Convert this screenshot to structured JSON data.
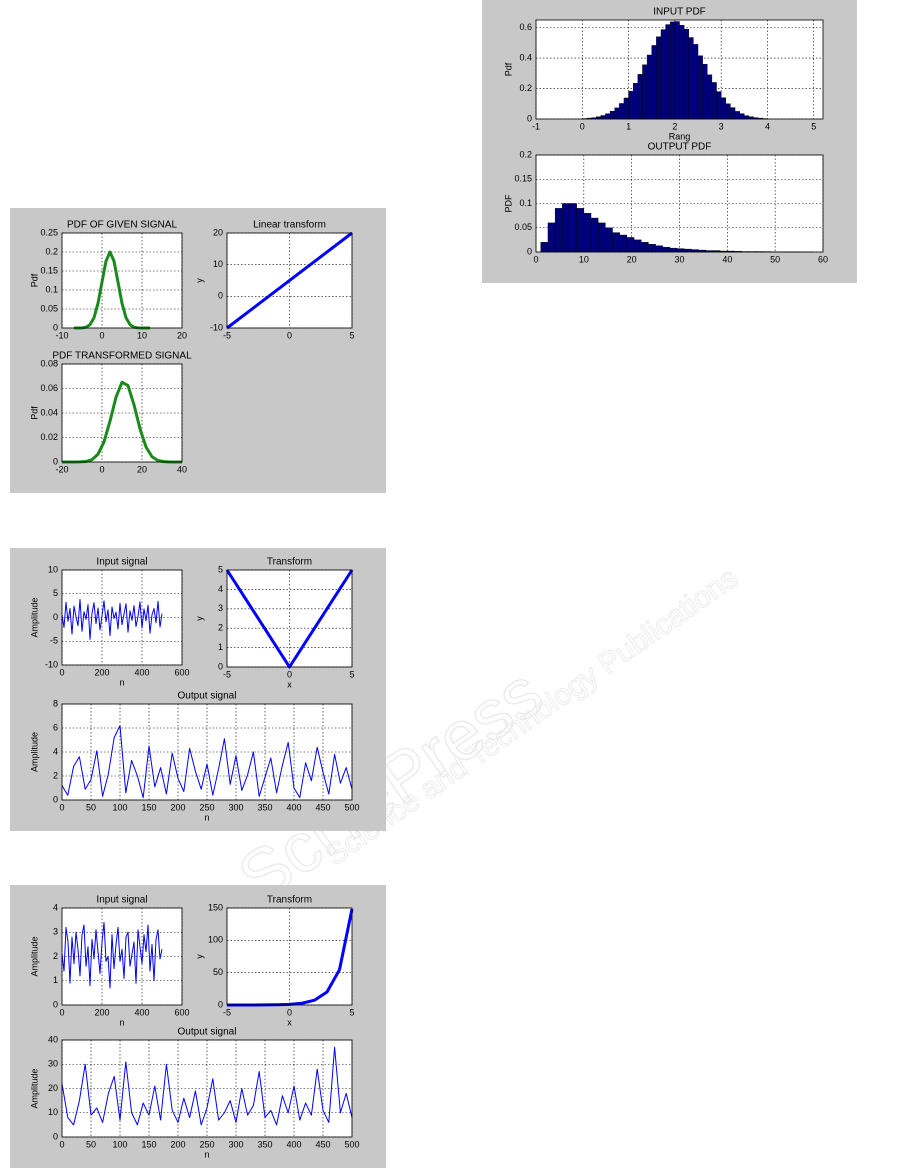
{
  "watermark": [
    "SciTePress",
    "Science and Technology Publications"
  ],
  "chart_data": [
    {
      "type": "line",
      "title": "PDF OF GIVEN SIGNAL",
      "ylabel": "Pdf",
      "xlim": [
        -10,
        20
      ],
      "xticks": [
        -10,
        0,
        10,
        20
      ],
      "ylim": [
        0,
        0.25
      ],
      "yticks": [
        0,
        0.05,
        0.1,
        0.15,
        0.2,
        0.25
      ],
      "grid": true,
      "x": [
        -7,
        -6,
        -5,
        -4,
        -3,
        -2,
        -1,
        0,
        1,
        2,
        3,
        4,
        5,
        6,
        7,
        8,
        9,
        10,
        11,
        12
      ],
      "series": [
        {
          "color": "#1b8a1b",
          "line_width": 3,
          "values": [
            0,
            0,
            0.0004,
            0.002,
            0.009,
            0.027,
            0.065,
            0.121,
            0.176,
            0.2,
            0.176,
            0.121,
            0.065,
            0.027,
            0.009,
            0.002,
            0.0004,
            0,
            0,
            0
          ]
        }
      ]
    },
    {
      "type": "line",
      "title": "Linear transform",
      "ylabel": "y",
      "xlim": [
        -5,
        5
      ],
      "xticks": [
        -5,
        0,
        5
      ],
      "ylim": [
        -10,
        20
      ],
      "yticks": [
        -10,
        0,
        10,
        20
      ],
      "grid": true,
      "x": [
        -5,
        5
      ],
      "series": [
        {
          "color": "#0000ff",
          "line_width": 3,
          "values": [
            -10,
            20
          ]
        }
      ]
    },
    {
      "type": "line",
      "title": "PDF TRANSFORMED SIGNAL",
      "ylabel": "Pdf",
      "xlim": [
        -20,
        40
      ],
      "xticks": [
        -20,
        0,
        20,
        40
      ],
      "ylim": [
        0,
        0.08
      ],
      "yticks": [
        0,
        0.02,
        0.04,
        0.06,
        0.08
      ],
      "grid": true,
      "x": [
        -20,
        -17,
        -14,
        -11,
        -8,
        -5,
        -2,
        1,
        4,
        7,
        10,
        13,
        16,
        19,
        22,
        25,
        28,
        31,
        34,
        37,
        40
      ],
      "series": [
        {
          "color": "#1b8a1b",
          "line_width": 3,
          "values": [
            0,
            0,
            0,
            0.0001,
            0.0004,
            0.0019,
            0.0063,
            0.0164,
            0.0334,
            0.0529,
            0.0651,
            0.0624,
            0.0467,
            0.0271,
            0.0123,
            0.0043,
            0.0012,
            0.0003,
            0,
            0,
            0
          ]
        }
      ]
    },
    {
      "type": "line",
      "title": "Input signal",
      "xlabel": "n",
      "ylabel": "Amplitude",
      "xlim": [
        0,
        600
      ],
      "xticks": [
        0,
        200,
        400,
        600
      ],
      "ylim": [
        -10,
        10
      ],
      "yticks": [
        -10,
        -5,
        0,
        5,
        10
      ],
      "grid": true,
      "x": [
        0,
        10,
        20,
        30,
        40,
        50,
        60,
        70,
        80,
        90,
        100,
        110,
        120,
        130,
        140,
        150,
        160,
        170,
        180,
        190,
        200,
        210,
        220,
        230,
        240,
        250,
        260,
        270,
        280,
        290,
        300,
        310,
        320,
        330,
        340,
        350,
        360,
        370,
        380,
        390,
        400,
        410,
        420,
        430,
        440,
        450,
        460,
        470,
        480,
        490,
        500
      ],
      "series": [
        {
          "color": "#0000ff",
          "line_width": 1,
          "values": [
            0.5,
            -2.1,
            3.2,
            -0.8,
            1.9,
            -3.5,
            2.4,
            0.1,
            -1.7,
            3.8,
            -2.9,
            1.2,
            -0.4,
            2.7,
            -4.6,
            0.9,
            3.1,
            -1.3,
            2.0,
            -2.6,
            0.3,
            3.5,
            -0.9,
            1.6,
            -3.8,
            2.2,
            -0.2,
            1.1,
            -2.4,
            3.0,
            -1.5,
            0.7,
            2.9,
            -3.1,
            1.4,
            -0.6,
            2.5,
            -1.9,
            0.2,
            3.3,
            -2.2,
            1.8,
            -0.7,
            2.6,
            -3.3,
            0.6,
            1.9,
            -1.1,
            3.4,
            -2.0,
            0.8
          ]
        }
      ]
    },
    {
      "type": "line",
      "title": "Transform",
      "xlabel": "x",
      "ylabel": "y",
      "xlim": [
        -5,
        5
      ],
      "xticks": [
        -5,
        0,
        5
      ],
      "ylim": [
        0,
        5
      ],
      "yticks": [
        0,
        1,
        2,
        3,
        4,
        5
      ],
      "grid": true,
      "x": [
        -5,
        0,
        5
      ],
      "series": [
        {
          "color": "#0000ff",
          "line_width": 3,
          "values": [
            5,
            0,
            5
          ]
        }
      ]
    },
    {
      "type": "line",
      "title": "Output  signal",
      "xlabel": "n",
      "ylabel": "Amplitude",
      "xlim": [
        0,
        500
      ],
      "xticks": [
        0,
        50,
        100,
        150,
        200,
        250,
        300,
        350,
        400,
        450,
        500
      ],
      "ylim": [
        0,
        8
      ],
      "yticks": [
        0,
        2,
        4,
        6,
        8
      ],
      "grid": true,
      "x": [
        0,
        10,
        20,
        30,
        40,
        50,
        60,
        70,
        80,
        90,
        100,
        110,
        120,
        130,
        140,
        150,
        160,
        170,
        180,
        190,
        200,
        210,
        220,
        230,
        240,
        250,
        260,
        270,
        280,
        290,
        300,
        310,
        320,
        330,
        340,
        350,
        360,
        370,
        380,
        390,
        400,
        410,
        420,
        430,
        440,
        450,
        460,
        470,
        480,
        490,
        500
      ],
      "series": [
        {
          "color": "#0000ff",
          "line_width": 1,
          "values": [
            1.2,
            0.4,
            2.8,
            3.6,
            0.9,
            1.7,
            4.1,
            0.3,
            2.2,
            5.2,
            6.2,
            0.6,
            3.3,
            2.0,
            0.2,
            4.5,
            1.1,
            2.7,
            0.5,
            3.9,
            1.8,
            0.7,
            4.3,
            2.4,
            0.9,
            3.0,
            0.4,
            2.6,
            5.1,
            1.3,
            3.7,
            0.8,
            2.1,
            4.0,
            0.3,
            1.9,
            3.5,
            0.6,
            2.9,
            4.8,
            1.0,
            0.2,
            3.1,
            1.6,
            4.4,
            2.3,
            0.5,
            3.8,
            1.4,
            2.7,
            0.9
          ]
        }
      ]
    },
    {
      "type": "line",
      "title": "Input signal",
      "xlabel": "n",
      "ylabel": "Amplitude",
      "xlim": [
        0,
        600
      ],
      "xticks": [
        0,
        200,
        400,
        600
      ],
      "ylim": [
        0,
        4
      ],
      "yticks": [
        0,
        1,
        2,
        3,
        4
      ],
      "grid": true,
      "x": [
        0,
        10,
        20,
        30,
        40,
        50,
        60,
        70,
        80,
        90,
        100,
        110,
        120,
        130,
        140,
        150,
        160,
        170,
        180,
        190,
        200,
        210,
        220,
        230,
        240,
        250,
        260,
        270,
        280,
        290,
        300,
        310,
        320,
        330,
        340,
        350,
        360,
        370,
        380,
        390,
        400,
        410,
        420,
        430,
        440,
        450,
        460,
        470,
        480,
        490,
        500
      ],
      "series": [
        {
          "color": "#0000ff",
          "line_width": 1,
          "values": [
            2.1,
            1.4,
            3.2,
            2.6,
            0.9,
            2.8,
            1.7,
            3.0,
            2.3,
            1.2,
            2.9,
            3.3,
            1.6,
            2.4,
            0.8,
            2.7,
            1.9,
            3.1,
            2.2,
            1.3,
            2.6,
            3.4,
            1.8,
            2.0,
            0.7,
            2.9,
            1.5,
            2.5,
            3.2,
            1.8,
            2.3,
            1.1,
            2.8,
            3.0,
            1.6,
            2.1,
            2.6,
            0.9,
            3.1,
            2.4,
            1.7,
            2.9,
            2.2,
            3.3,
            1.4,
            2.5,
            1.0,
            2.7,
            3.1,
            1.9,
            2.3
          ]
        }
      ]
    },
    {
      "type": "line",
      "title": "Transform",
      "xlabel": "x",
      "ylabel": "y",
      "xlim": [
        -5,
        5
      ],
      "xticks": [
        -5,
        0,
        5
      ],
      "ylim": [
        0,
        150
      ],
      "yticks": [
        0,
        50,
        100,
        150
      ],
      "grid": true,
      "x": [
        -5,
        -4,
        -3,
        -2,
        -1,
        0,
        1,
        2,
        3,
        4,
        5
      ],
      "series": [
        {
          "color": "#0000ff",
          "line_width": 3,
          "values": [
            0.0067,
            0.018,
            0.05,
            0.14,
            0.37,
            1,
            2.7,
            7.4,
            20.1,
            54.6,
            148.4
          ]
        }
      ]
    },
    {
      "type": "line",
      "title": "Output  signal",
      "xlabel": "n",
      "ylabel": "Amplitude",
      "xlim": [
        0,
        500
      ],
      "xticks": [
        0,
        50,
        100,
        150,
        200,
        250,
        300,
        350,
        400,
        450,
        500
      ],
      "ylim": [
        0,
        40
      ],
      "yticks": [
        0,
        10,
        20,
        30,
        40
      ],
      "grid": true,
      "x": [
        0,
        10,
        20,
        30,
        40,
        50,
        60,
        70,
        80,
        90,
        100,
        110,
        120,
        130,
        140,
        150,
        160,
        170,
        180,
        190,
        200,
        210,
        220,
        230,
        240,
        250,
        260,
        270,
        280,
        290,
        300,
        310,
        320,
        330,
        340,
        350,
        360,
        370,
        380,
        390,
        400,
        410,
        420,
        430,
        440,
        450,
        460,
        470,
        480,
        490,
        500
      ],
      "series": [
        {
          "color": "#0000ff",
          "line_width": 1,
          "values": [
            22,
            8,
            5,
            15,
            30,
            9,
            12,
            6,
            18,
            25,
            7,
            31,
            10,
            5,
            14,
            9,
            21,
            7,
            30,
            11,
            6,
            16,
            8,
            19,
            5,
            12,
            24,
            7,
            10,
            15,
            6,
            20,
            9,
            13,
            27,
            8,
            11,
            5,
            17,
            10,
            21,
            7,
            14,
            9,
            28,
            11,
            6,
            37,
            10,
            18,
            8
          ]
        }
      ]
    },
    {
      "type": "histogram",
      "title": "INPUT PDF",
      "xlabel": "Rang",
      "ylabel": "Pdf",
      "color": "#00007a",
      "xlim": [
        -1,
        5.2
      ],
      "xticks": [
        -1,
        0,
        1,
        2,
        3,
        4,
        5
      ],
      "ylim": [
        0,
        0.65
      ],
      "yticks": [
        0,
        0.2,
        0.4,
        0.6
      ],
      "grid": true,
      "bins": [
        0,
        0.1,
        0.2,
        0.3,
        0.4,
        0.5,
        0.6,
        0.7,
        0.8,
        0.9,
        1,
        1.1,
        1.2,
        1.3,
        1.4,
        1.5,
        1.6,
        1.7,
        1.8,
        1.9,
        2,
        2.1,
        2.2,
        2.3,
        2.4,
        2.5,
        2.6,
        2.7,
        2.8,
        2.9,
        3,
        3.1,
        3.2,
        3.3,
        3.4,
        3.5,
        3.6,
        3.7,
        3.8,
        3.9,
        4
      ],
      "values": [
        0.003,
        0.006,
        0.009,
        0.015,
        0.023,
        0.035,
        0.051,
        0.073,
        0.102,
        0.138,
        0.183,
        0.235,
        0.293,
        0.356,
        0.42,
        0.483,
        0.54,
        0.587,
        0.62,
        0.638,
        0.64,
        0.615,
        0.59,
        0.535,
        0.49,
        0.415,
        0.36,
        0.29,
        0.24,
        0.18,
        0.14,
        0.1,
        0.075,
        0.05,
        0.035,
        0.022,
        0.015,
        0.009,
        0.006,
        0.003
      ]
    },
    {
      "type": "histogram",
      "title": "OUTPUT PDF",
      "ylabel": "PDF",
      "color": "#00007a",
      "xlim": [
        0,
        60
      ],
      "xticks": [
        0,
        10,
        20,
        30,
        40,
        50,
        60
      ],
      "ylim": [
        0,
        0.2
      ],
      "yticks": [
        0,
        0.05,
        0.1,
        0.15,
        0.2
      ],
      "grid": true,
      "bins": [
        1,
        2.5,
        4,
        5.5,
        7,
        8.5,
        10,
        11.5,
        13,
        14.5,
        16,
        17.5,
        19,
        20.5,
        22,
        23.5,
        25,
        26.5,
        28,
        29.5,
        31,
        32.5,
        34,
        35.5,
        37,
        38.5,
        40,
        41.5,
        43,
        44.5,
        46,
        47.5,
        49,
        50.5,
        52,
        53.5,
        55,
        56.5,
        58
      ],
      "values": [
        0.02,
        0.06,
        0.09,
        0.1,
        0.1,
        0.09,
        0.08,
        0.07,
        0.06,
        0.05,
        0.04,
        0.035,
        0.03,
        0.025,
        0.02,
        0.016,
        0.013,
        0.01,
        0.008,
        0.007,
        0.006,
        0.005,
        0.004,
        0.003,
        0.003,
        0.002,
        0.002,
        0.0015,
        0.001,
        0.001,
        0.001,
        0.0008,
        0.0006,
        0.0005,
        0.0004,
        0.0003,
        0.0002,
        0.0002
      ]
    }
  ]
}
